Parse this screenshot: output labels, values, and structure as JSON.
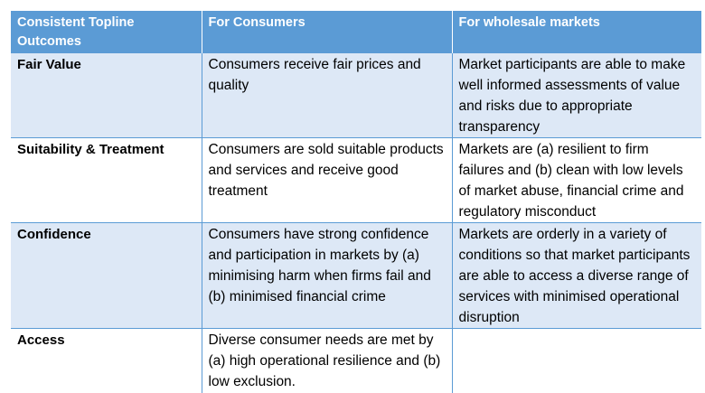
{
  "table": {
    "headers": [
      "Consistent Topline Outcomes",
      "For Consumers",
      "For wholesale markets"
    ],
    "rows": [
      {
        "outcome": "Fair Value",
        "consumers": "Consumers receive fair prices and quality",
        "wholesale": "Market participants are able to make well informed assessments of value and risks due to appropriate transparency"
      },
      {
        "outcome": "Suitability & Treatment",
        "consumers": "Consumers are sold suitable products and services and receive good treatment",
        "wholesale": "Markets are (a) resilient to firm failures and (b) clean with low levels of market abuse, financial crime and regulatory misconduct"
      },
      {
        "outcome": "Confidence",
        "consumers": "Consumers have strong confidence and participation in markets by (a) minimising harm when firms fail and (b) minimised financial crime",
        "wholesale": "Markets are orderly in a variety of conditions so that market participants are able to access a diverse range of services with minimised operational disruption"
      },
      {
        "outcome": "Access",
        "consumers": "Diverse consumer needs are met by (a) high operational resilience and (b) low exclusion.",
        "wholesale": ""
      }
    ]
  }
}
